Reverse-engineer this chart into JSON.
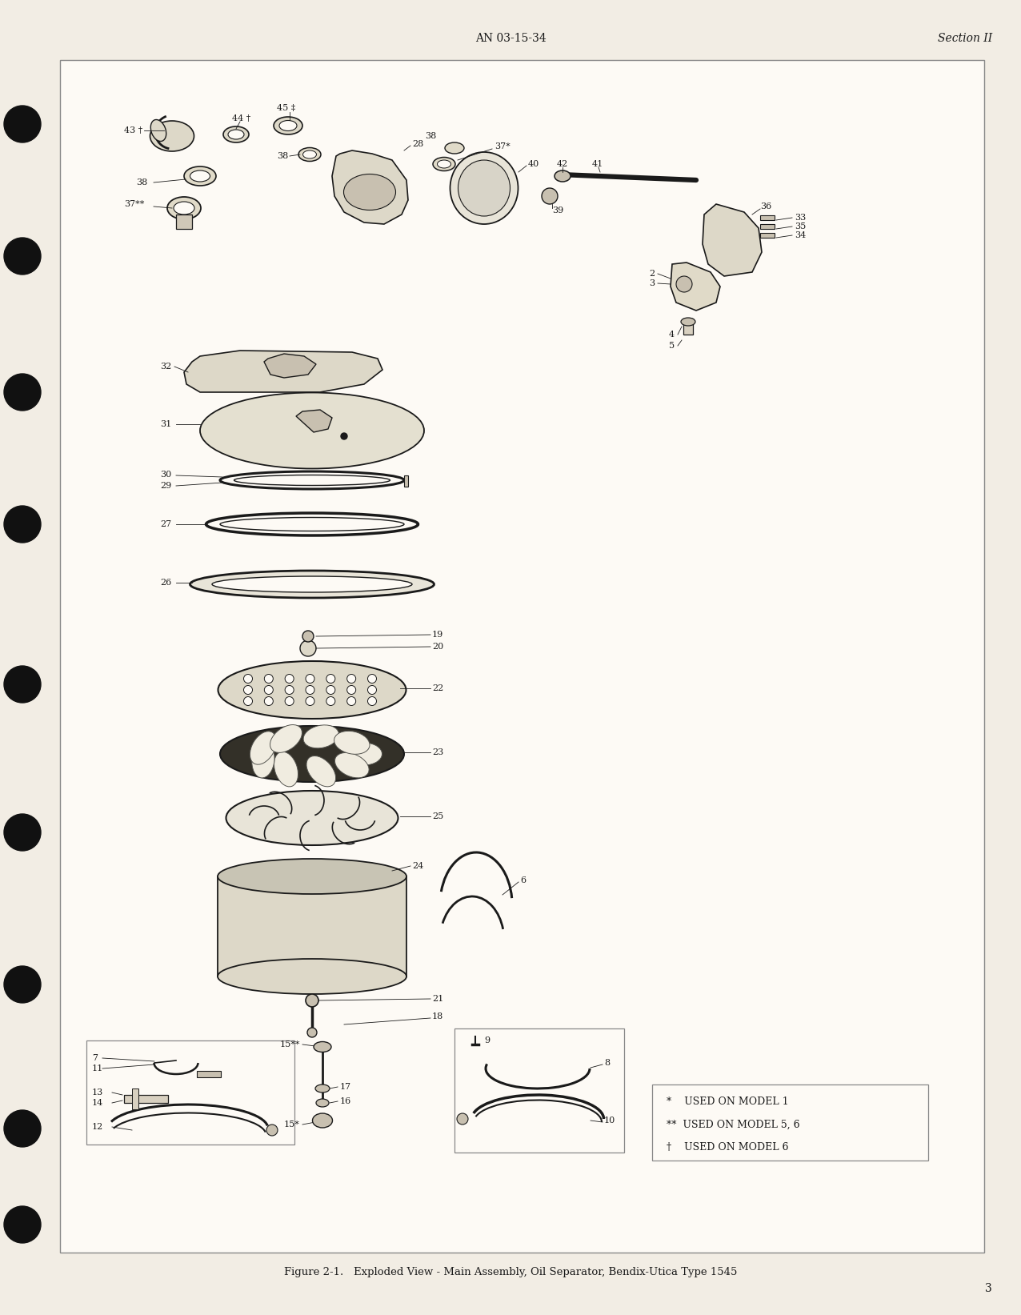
{
  "page_bg": "#f2ede4",
  "box_bg": "#fdfaf5",
  "text_color": "#1a1a1a",
  "line_color": "#1a1a1a",
  "header_text": "AN 03-15-34",
  "header_right": "Section II",
  "page_number": "3",
  "caption": "Figure 2-1.   Exploded View - Main Assembly, Oil Separator, Bendix-Utica Type 1545",
  "legend": [
    "*    USED ON MODEL 1",
    "**  USED ON MODEL 5, 6",
    "†    USED ON MODEL 6"
  ]
}
